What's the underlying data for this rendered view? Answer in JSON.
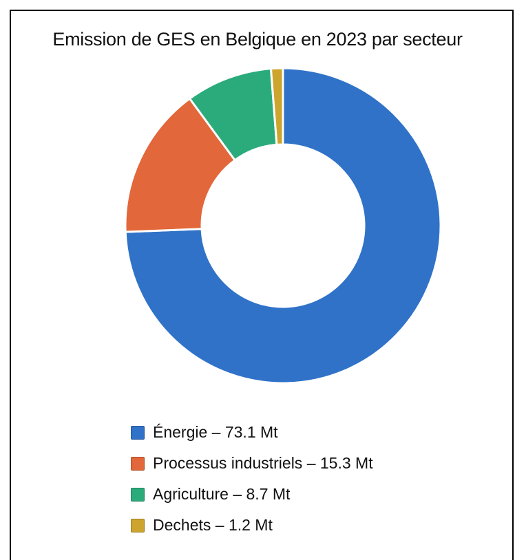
{
  "chart_data": {
    "type": "pie",
    "title": "Emission de GES en Belgique en 2023 par secteur",
    "categories": [
      "Énergie",
      "Processus industriels",
      "Agriculture",
      "Dechets"
    ],
    "values": [
      73.1,
      15.3,
      8.7,
      1.2
    ],
    "unit": "Mt",
    "colors": [
      "#2f72c8",
      "#e2673a",
      "#2bab7b",
      "#cda52e"
    ],
    "legend": {
      "position": "bottom",
      "entries": [
        "Énergie – 73.1 Mt",
        "Processus industriels – 15.3 Mt",
        "Agriculture – 8.7 Mt",
        "Dechets – 1.2 Mt"
      ]
    }
  }
}
